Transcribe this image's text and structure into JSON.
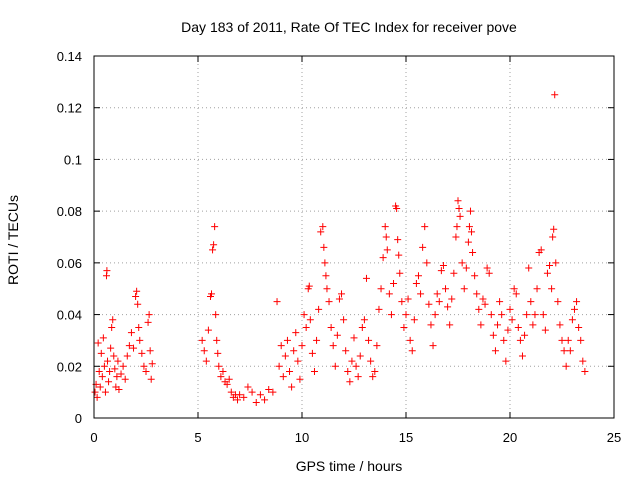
{
  "chart_data": {
    "type": "scatter",
    "title": "Day 183 of 2011, Rate Of TEC Index for receiver pove",
    "xlabel": "GPS time / hours",
    "ylabel": "ROTI / TECUs",
    "xlim": [
      0,
      25
    ],
    "ylim": [
      0,
      0.14
    ],
    "xticks": [
      "0",
      "5",
      "10",
      "15",
      "20",
      "25"
    ],
    "yticks": [
      "0",
      "0.02",
      "0.04",
      "0.06",
      "0.08",
      "0.1",
      "0.12",
      "0.14"
    ],
    "grid": true,
    "marker": "plus",
    "color": "#ff0000",
    "series": [
      {
        "points": [
          [
            0.05,
            0.01
          ],
          [
            0.1,
            0.013
          ],
          [
            0.15,
            0.008
          ],
          [
            0.2,
            0.029
          ],
          [
            0.25,
            0.018
          ],
          [
            0.3,
            0.012
          ],
          [
            0.35,
            0.025
          ],
          [
            0.4,
            0.016
          ],
          [
            0.45,
            0.031
          ],
          [
            0.5,
            0.02
          ],
          [
            0.55,
            0.01
          ],
          [
            0.6,
            0.055
          ],
          [
            0.62,
            0.057
          ],
          [
            0.65,
            0.022
          ],
          [
            0.7,
            0.014
          ],
          [
            0.75,
            0.018
          ],
          [
            0.8,
            0.027
          ],
          [
            0.85,
            0.035
          ],
          [
            0.9,
            0.038
          ],
          [
            0.95,
            0.024
          ],
          [
            1.0,
            0.019
          ],
          [
            1.05,
            0.012
          ],
          [
            1.1,
            0.016
          ],
          [
            1.15,
            0.022
          ],
          [
            1.2,
            0.011
          ],
          [
            1.3,
            0.017
          ],
          [
            1.4,
            0.02
          ],
          [
            1.5,
            0.015
          ],
          [
            1.6,
            0.024
          ],
          [
            1.7,
            0.028
          ],
          [
            1.8,
            0.033
          ],
          [
            1.9,
            0.027
          ],
          [
            2.0,
            0.047
          ],
          [
            2.05,
            0.049
          ],
          [
            2.1,
            0.044
          ],
          [
            2.15,
            0.035
          ],
          [
            2.2,
            0.03
          ],
          [
            2.3,
            0.025
          ],
          [
            2.4,
            0.02
          ],
          [
            2.5,
            0.018
          ],
          [
            2.6,
            0.037
          ],
          [
            2.65,
            0.04
          ],
          [
            2.7,
            0.026
          ],
          [
            2.75,
            0.015
          ],
          [
            2.8,
            0.021
          ],
          [
            5.2,
            0.03
          ],
          [
            5.3,
            0.026
          ],
          [
            5.4,
            0.022
          ],
          [
            5.5,
            0.034
          ],
          [
            5.6,
            0.047
          ],
          [
            5.65,
            0.048
          ],
          [
            5.7,
            0.065
          ],
          [
            5.75,
            0.067
          ],
          [
            5.8,
            0.074
          ],
          [
            5.85,
            0.04
          ],
          [
            5.9,
            0.03
          ],
          [
            5.95,
            0.025
          ],
          [
            6.0,
            0.02
          ],
          [
            6.1,
            0.016
          ],
          [
            6.2,
            0.018
          ],
          [
            6.3,
            0.014
          ],
          [
            6.4,
            0.013
          ],
          [
            6.5,
            0.015
          ],
          [
            6.6,
            0.01
          ],
          [
            6.7,
            0.008
          ],
          [
            6.8,
            0.009
          ],
          [
            6.9,
            0.007
          ],
          [
            7.0,
            0.009
          ],
          [
            7.2,
            0.008
          ],
          [
            7.4,
            0.012
          ],
          [
            7.6,
            0.01
          ],
          [
            7.8,
            0.006
          ],
          [
            8.0,
            0.009
          ],
          [
            8.2,
            0.007
          ],
          [
            8.4,
            0.011
          ],
          [
            8.6,
            0.01
          ],
          [
            8.8,
            0.045
          ],
          [
            8.9,
            0.02
          ],
          [
            9.0,
            0.028
          ],
          [
            9.1,
            0.016
          ],
          [
            9.2,
            0.024
          ],
          [
            9.3,
            0.03
          ],
          [
            9.4,
            0.018
          ],
          [
            9.5,
            0.012
          ],
          [
            9.6,
            0.026
          ],
          [
            9.7,
            0.033
          ],
          [
            9.8,
            0.022
          ],
          [
            9.9,
            0.015
          ],
          [
            10.0,
            0.028
          ],
          [
            10.1,
            0.04
          ],
          [
            10.2,
            0.035
          ],
          [
            10.3,
            0.05
          ],
          [
            10.35,
            0.051
          ],
          [
            10.4,
            0.038
          ],
          [
            10.5,
            0.025
          ],
          [
            10.6,
            0.018
          ],
          [
            10.7,
            0.03
          ],
          [
            10.8,
            0.042
          ],
          [
            10.9,
            0.072
          ],
          [
            11.0,
            0.074
          ],
          [
            11.05,
            0.066
          ],
          [
            11.1,
            0.06
          ],
          [
            11.15,
            0.055
          ],
          [
            11.2,
            0.05
          ],
          [
            11.3,
            0.045
          ],
          [
            11.4,
            0.035
          ],
          [
            11.5,
            0.028
          ],
          [
            11.6,
            0.02
          ],
          [
            11.7,
            0.032
          ],
          [
            11.8,
            0.046
          ],
          [
            11.9,
            0.048
          ],
          [
            12.0,
            0.038
          ],
          [
            12.1,
            0.026
          ],
          [
            12.2,
            0.018
          ],
          [
            12.3,
            0.014
          ],
          [
            12.4,
            0.022
          ],
          [
            12.5,
            0.031
          ],
          [
            12.6,
            0.02
          ],
          [
            12.7,
            0.016
          ],
          [
            12.8,
            0.024
          ],
          [
            12.9,
            0.035
          ],
          [
            13.0,
            0.038
          ],
          [
            13.1,
            0.054
          ],
          [
            13.2,
            0.03
          ],
          [
            13.3,
            0.022
          ],
          [
            13.4,
            0.016
          ],
          [
            13.5,
            0.018
          ],
          [
            13.6,
            0.028
          ],
          [
            13.7,
            0.042
          ],
          [
            13.8,
            0.05
          ],
          [
            13.9,
            0.062
          ],
          [
            14.0,
            0.074
          ],
          [
            14.05,
            0.07
          ],
          [
            14.1,
            0.065
          ],
          [
            14.2,
            0.048
          ],
          [
            14.3,
            0.04
          ],
          [
            14.4,
            0.052
          ],
          [
            14.5,
            0.082
          ],
          [
            14.55,
            0.081
          ],
          [
            14.6,
            0.069
          ],
          [
            14.65,
            0.063
          ],
          [
            14.7,
            0.056
          ],
          [
            14.8,
            0.045
          ],
          [
            14.9,
            0.035
          ],
          [
            15.0,
            0.04
          ],
          [
            15.1,
            0.046
          ],
          [
            15.2,
            0.03
          ],
          [
            15.3,
            0.026
          ],
          [
            15.4,
            0.038
          ],
          [
            15.5,
            0.052
          ],
          [
            15.6,
            0.055
          ],
          [
            15.7,
            0.048
          ],
          [
            15.8,
            0.066
          ],
          [
            15.9,
            0.074
          ],
          [
            16.0,
            0.06
          ],
          [
            16.1,
            0.044
          ],
          [
            16.2,
            0.036
          ],
          [
            16.3,
            0.028
          ],
          [
            16.4,
            0.04
          ],
          [
            16.5,
            0.048
          ],
          [
            16.6,
            0.045
          ],
          [
            16.7,
            0.057
          ],
          [
            16.8,
            0.059
          ],
          [
            16.9,
            0.05
          ],
          [
            17.0,
            0.043
          ],
          [
            17.1,
            0.036
          ],
          [
            17.2,
            0.046
          ],
          [
            17.3,
            0.056
          ],
          [
            17.4,
            0.07
          ],
          [
            17.45,
            0.074
          ],
          [
            17.5,
            0.084
          ],
          [
            17.55,
            0.081
          ],
          [
            17.6,
            0.078
          ],
          [
            17.7,
            0.06
          ],
          [
            17.8,
            0.05
          ],
          [
            17.9,
            0.058
          ],
          [
            18.0,
            0.068
          ],
          [
            18.05,
            0.074
          ],
          [
            18.1,
            0.08
          ],
          [
            18.15,
            0.072
          ],
          [
            18.2,
            0.064
          ],
          [
            18.3,
            0.055
          ],
          [
            18.4,
            0.048
          ],
          [
            18.5,
            0.042
          ],
          [
            18.6,
            0.036
          ],
          [
            18.7,
            0.046
          ],
          [
            18.8,
            0.044
          ],
          [
            18.9,
            0.058
          ],
          [
            19.0,
            0.056
          ],
          [
            19.1,
            0.04
          ],
          [
            19.2,
            0.032
          ],
          [
            19.3,
            0.026
          ],
          [
            19.4,
            0.036
          ],
          [
            19.5,
            0.045
          ],
          [
            19.6,
            0.04
          ],
          [
            19.7,
            0.03
          ],
          [
            19.8,
            0.022
          ],
          [
            19.9,
            0.034
          ],
          [
            20.0,
            0.042
          ],
          [
            20.1,
            0.038
          ],
          [
            20.2,
            0.05
          ],
          [
            20.3,
            0.048
          ],
          [
            20.4,
            0.035
          ],
          [
            20.5,
            0.03
          ],
          [
            20.6,
            0.024
          ],
          [
            20.7,
            0.032
          ],
          [
            20.8,
            0.04
          ],
          [
            20.9,
            0.058
          ],
          [
            21.0,
            0.045
          ],
          [
            21.1,
            0.036
          ],
          [
            21.2,
            0.04
          ],
          [
            21.3,
            0.05
          ],
          [
            21.4,
            0.064
          ],
          [
            21.5,
            0.065
          ],
          [
            21.6,
            0.04
          ],
          [
            21.7,
            0.034
          ],
          [
            21.8,
            0.056
          ],
          [
            21.9,
            0.059
          ],
          [
            22.0,
            0.05
          ],
          [
            22.05,
            0.07
          ],
          [
            22.1,
            0.073
          ],
          [
            22.15,
            0.125
          ],
          [
            22.2,
            0.06
          ],
          [
            22.3,
            0.045
          ],
          [
            22.4,
            0.036
          ],
          [
            22.5,
            0.03
          ],
          [
            22.6,
            0.026
          ],
          [
            22.7,
            0.02
          ],
          [
            22.8,
            0.03
          ],
          [
            22.9,
            0.026
          ],
          [
            23.0,
            0.038
          ],
          [
            23.1,
            0.042
          ],
          [
            23.2,
            0.045
          ],
          [
            23.3,
            0.035
          ],
          [
            23.4,
            0.03
          ],
          [
            23.5,
            0.022
          ],
          [
            23.6,
            0.018
          ]
        ]
      }
    ]
  }
}
